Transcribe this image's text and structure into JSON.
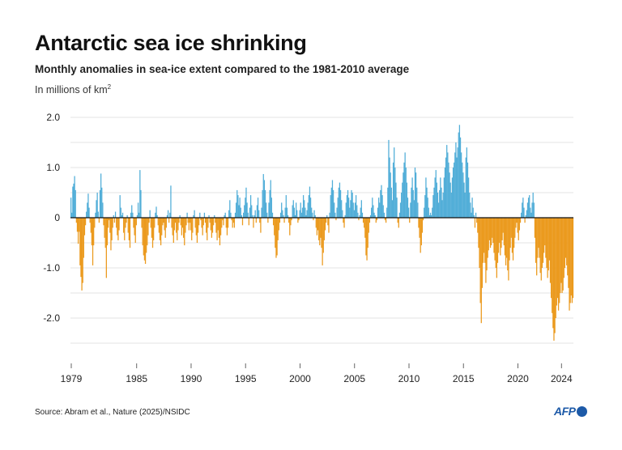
{
  "title": "Antarctic sea ice shrinking",
  "subtitle": "Monthly anomalies in sea-ice extent compared to the 1981-2010 average",
  "units": "In millions of km",
  "units_superscript": "2",
  "source": "Source: Abram et al., Nature (2025)/NSIDC",
  "logo_text": "AFP",
  "colors": {
    "positive": "#52aed8",
    "negative": "#eb9a1e",
    "grid": "#e3e3e3",
    "zero": "#111111",
    "axis": "#666666"
  },
  "chart_data": {
    "type": "bar",
    "title": "Antarctic sea ice shrinking",
    "subtitle": "Monthly anomalies in sea-ice extent compared to the 1981-2010 average",
    "ylabel": "In millions of km²",
    "ylim": [
      -2.5,
      2.0
    ],
    "yticks": [
      {
        "v": 2.0,
        "label": "2.0"
      },
      {
        "v": 1.0,
        "label": "1.0"
      },
      {
        "v": 0,
        "label": "0"
      },
      {
        "v": -1.0,
        "label": "-1.0"
      },
      {
        "v": -2.0,
        "label": "-2.0"
      }
    ],
    "grid": true,
    "xrange": [
      "1979-01",
      "2025-02"
    ],
    "xticks": [
      "1979",
      "1985",
      "1990",
      "1995",
      "2000",
      "2005",
      "2010",
      "2015",
      "2020",
      "2024"
    ],
    "yearly_values": [
      {
        "year": 1979,
        "values": [
          0.4,
          0.1,
          0.62,
          0.68,
          0.83,
          0.55,
          -0.1,
          -0.28,
          -0.52,
          -0.28,
          -0.95,
          -1.18
        ]
      },
      {
        "year": 1980,
        "values": [
          -1.45,
          -1.3,
          -0.8,
          -0.35,
          -0.15,
          0.12,
          0.3,
          0.48,
          0.2,
          -0.1,
          -0.3,
          -0.55
        ]
      },
      {
        "year": 1981,
        "values": [
          -0.95,
          -0.55,
          -0.2,
          0.1,
          0.35,
          0.5,
          0.12,
          -0.1,
          0.55,
          0.88,
          0.6,
          0.3
        ]
      },
      {
        "year": 1982,
        "values": [
          -0.15,
          -0.4,
          -0.6,
          -1.2,
          -0.55,
          -0.2,
          -0.05,
          -0.3,
          -0.65,
          -0.45,
          -0.2,
          0.05
        ]
      },
      {
        "year": 1983,
        "values": [
          -0.1,
          0.12,
          -0.2,
          -0.35,
          -0.45,
          -0.25,
          0.45,
          0.2,
          0.05,
          0.1,
          -0.3,
          -0.45
        ]
      },
      {
        "year": 1984,
        "values": [
          -0.2,
          -0.1,
          0.05,
          -0.3,
          -0.45,
          -0.6,
          0.1,
          0.25,
          0.1,
          -0.2,
          -0.35,
          -0.5
        ]
      },
      {
        "year": 1985,
        "values": [
          -0.15,
          0.05,
          0.3,
          0.1,
          0.95,
          0.55,
          -0.2,
          -0.55,
          -0.75,
          -0.85,
          -0.92,
          -0.7
        ]
      },
      {
        "year": 1986,
        "values": [
          -0.55,
          -0.35,
          -0.1,
          0.15,
          -0.2,
          -0.4,
          -0.6,
          -0.45,
          -0.2,
          0.1,
          0.22,
          0.05
        ]
      },
      {
        "year": 1987,
        "values": [
          -0.15,
          -0.3,
          -0.45,
          -0.55,
          -0.35,
          -0.15,
          -0.1,
          -0.25,
          -0.4,
          -0.2,
          0.05,
          0.15
        ]
      },
      {
        "year": 1988,
        "values": [
          -0.1,
          0.1,
          0.64,
          -0.2,
          -0.35,
          -0.5,
          -0.25,
          -0.1,
          -0.3,
          -0.45,
          -0.25,
          -0.1
        ]
      },
      {
        "year": 1989,
        "values": [
          0.05,
          -0.15,
          -0.35,
          -0.2,
          -0.4,
          -0.55,
          -0.3,
          -0.15,
          0.1,
          -0.1,
          -0.25,
          -0.1
        ]
      },
      {
        "year": 1990,
        "values": [
          -0.25,
          -0.45,
          -0.3,
          0.05,
          0.15,
          -0.2,
          -0.35,
          -0.5,
          -0.3,
          -0.15,
          0.1,
          -0.05
        ]
      },
      {
        "year": 1991,
        "values": [
          -0.2,
          -0.35,
          -0.15,
          0.1,
          -0.1,
          -0.3,
          -0.45,
          -0.2,
          0.05,
          -0.1,
          -0.25,
          -0.4
        ]
      },
      {
        "year": 1992,
        "values": [
          -0.3,
          -0.15,
          0.05,
          -0.1,
          -0.3,
          -0.45,
          -0.25,
          -0.4,
          -0.55,
          -0.35,
          -0.2,
          -0.05
        ]
      },
      {
        "year": 1993,
        "values": [
          -0.15,
          0.05,
          0.1,
          -0.2,
          -0.35,
          -0.2,
          0.15,
          0.35,
          0.1,
          -0.05,
          -0.2,
          -0.1
        ]
      },
      {
        "year": 1994,
        "values": [
          -0.2,
          0.1,
          0.3,
          0.55,
          0.45,
          0.25,
          0.4,
          0.2,
          0.05,
          -0.15,
          0.1,
          0.25
        ]
      },
      {
        "year": 1995,
        "values": [
          0.4,
          0.6,
          0.3,
          0.1,
          -0.15,
          0.2,
          0.45,
          0.25,
          0.05,
          -0.2,
          0.05,
          0.15
        ]
      },
      {
        "year": 1996,
        "values": [
          -0.1,
          0.25,
          0.4,
          0.15,
          -0.1,
          -0.3,
          0.2,
          0.55,
          0.87,
          0.75,
          0.55,
          0.3
        ]
      },
      {
        "year": 1997,
        "values": [
          0.1,
          -0.1,
          0.3,
          0.55,
          0.75,
          0.4,
          0.1,
          -0.15,
          -0.35,
          -0.6,
          -0.8,
          -0.75
        ]
      },
      {
        "year": 1998,
        "values": [
          -0.45,
          -0.25,
          -0.1,
          0.1,
          0.3,
          0.15,
          0.05,
          -0.1,
          0.2,
          0.45,
          0.2,
          0.05
        ]
      },
      {
        "year": 1999,
        "values": [
          -0.1,
          -0.35,
          -0.15,
          -0.05,
          0.25,
          0.35,
          0.2,
          0.05,
          0.3,
          0.15,
          -0.1,
          -0.05
        ]
      },
      {
        "year": 2000,
        "values": [
          0.15,
          0.3,
          0.1,
          0.2,
          0.45,
          0.35,
          0.2,
          0.05,
          0.15,
          0.3,
          0.45,
          0.62
        ]
      },
      {
        "year": 2001,
        "values": [
          0.4,
          0.2,
          0.1,
          -0.05,
          0.15,
          0.05,
          -0.2,
          -0.35,
          -0.25,
          -0.45,
          -0.55,
          -0.4
        ]
      },
      {
        "year": 2002,
        "values": [
          -0.6,
          -0.95,
          -0.7,
          -0.45,
          -0.25,
          -0.1,
          0.05,
          -0.15,
          -0.3,
          0.1,
          0.45,
          0.6
        ]
      },
      {
        "year": 2003,
        "values": [
          0.75,
          0.55,
          0.3,
          0.1,
          -0.05,
          0.2,
          0.4,
          0.6,
          0.7,
          0.55,
          0.35,
          0.15
        ]
      },
      {
        "year": 2004,
        "values": [
          -0.1,
          -0.2,
          0.05,
          0.3,
          0.45,
          0.55,
          0.4,
          0.2,
          0.35,
          0.55,
          0.5,
          0.3
        ]
      },
      {
        "year": 2005,
        "values": [
          0.15,
          0.3,
          0.45,
          0.25,
          0.1,
          -0.05,
          0.05,
          0.2,
          0.35,
          0.1,
          -0.1,
          -0.2
        ]
      },
      {
        "year": 2006,
        "values": [
          -0.4,
          -0.75,
          -0.85,
          -0.6,
          -0.3,
          -0.1,
          0.05,
          0.2,
          0.4,
          0.25,
          0.1,
          0.05
        ]
      },
      {
        "year": 2007,
        "values": [
          -0.1,
          -0.05,
          0.2,
          0.4,
          0.3,
          0.55,
          0.65,
          0.45,
          0.25,
          0.1,
          -0.05,
          -0.1
        ]
      },
      {
        "year": 2008,
        "values": [
          0.2,
          0.6,
          1.55,
          1.2,
          0.9,
          0.6,
          0.35,
          1.1,
          1.4,
          1.0,
          0.7,
          0.4
        ]
      },
      {
        "year": 2009,
        "values": [
          -0.1,
          -0.2,
          0.1,
          0.3,
          0.5,
          0.7,
          0.9,
          1.1,
          1.3,
          1.0,
          0.7,
          0.4
        ]
      },
      {
        "year": 2010,
        "values": [
          0.2,
          -0.1,
          0.3,
          0.6,
          0.8,
          0.55,
          0.35,
          1.0,
          0.9,
          0.6,
          0.3,
          -0.2
        ]
      },
      {
        "year": 2011,
        "values": [
          -0.4,
          -0.7,
          -0.55,
          -0.3,
          -0.05,
          0.2,
          0.45,
          0.8,
          0.6,
          0.4,
          0.2,
          0.05
        ]
      },
      {
        "year": 2012,
        "values": [
          0.1,
          0.05,
          0.2,
          0.45,
          0.6,
          0.8,
          0.95,
          0.7,
          0.5,
          0.3,
          0.55,
          0.8
        ]
      },
      {
        "year": 2013,
        "values": [
          0.6,
          0.35,
          0.5,
          0.8,
          1.0,
          1.2,
          1.45,
          1.3,
          1.1,
          0.9,
          0.7,
          0.5
        ]
      },
      {
        "year": 2014,
        "values": [
          0.8,
          1.0,
          1.1,
          1.3,
          1.5,
          1.2,
          1.4,
          1.7,
          1.85,
          1.6,
          1.3,
          1.1
        ]
      },
      {
        "year": 2015,
        "values": [
          0.9,
          0.7,
          0.5,
          1.2,
          1.4,
          1.1,
          0.8,
          0.5,
          0.3,
          0.1,
          0.4,
          0.2
        ]
      },
      {
        "year": 2016,
        "values": [
          0.05,
          -0.2,
          0.1,
          -0.1,
          -0.3,
          -0.6,
          -1.0,
          -1.7,
          -2.1,
          -1.4,
          -0.9,
          -0.7
        ]
      },
      {
        "year": 2017,
        "values": [
          -0.9,
          -1.3,
          -1.05,
          -0.8,
          -0.65,
          -0.45,
          -0.6,
          -0.55,
          -0.4,
          -0.5,
          -0.7,
          -0.85
        ]
      },
      {
        "year": 2018,
        "values": [
          -1.0,
          -1.2,
          -0.9,
          -0.7,
          -0.5,
          -0.75,
          -0.6,
          -0.45,
          -0.3,
          -0.55,
          -0.75,
          -0.95
        ]
      },
      {
        "year": 2019,
        "values": [
          -0.8,
          -1.05,
          -1.25,
          -0.85,
          -0.6,
          -0.4,
          -0.7,
          -0.85,
          -0.6,
          -0.4,
          -0.2,
          -0.1
        ]
      },
      {
        "year": 2020,
        "values": [
          -0.3,
          -0.45,
          -0.25,
          -0.1,
          0.1,
          0.3,
          0.4,
          0.2,
          -0.1,
          0.05,
          0.15,
          0.3
        ]
      },
      {
        "year": 2021,
        "values": [
          0.4,
          0.45,
          0.2,
          0.1,
          0.3,
          0.5,
          0.3,
          -0.4,
          -0.9,
          -1.15,
          -0.8,
          -0.6
        ]
      },
      {
        "year": 2022,
        "values": [
          -0.8,
          -1.1,
          -1.25,
          -1.0,
          -0.9,
          -0.7,
          -0.55,
          -0.8,
          -1.0,
          -1.2,
          -1.05,
          -0.85
        ]
      },
      {
        "year": 2023,
        "values": [
          -1.3,
          -1.6,
          -1.9,
          -2.2,
          -2.45,
          -2.3,
          -2.0,
          -1.75,
          -1.6,
          -1.85,
          -1.7,
          -1.5
        ]
      },
      {
        "year": 2024,
        "values": [
          -1.3,
          -1.5,
          -1.45,
          -1.2,
          -1.0,
          -0.8,
          -0.95,
          -1.15,
          -1.4,
          -1.85,
          -1.7,
          -1.55
        ]
      },
      {
        "year": 2025,
        "values": [
          -1.7,
          -1.6
        ]
      }
    ]
  }
}
